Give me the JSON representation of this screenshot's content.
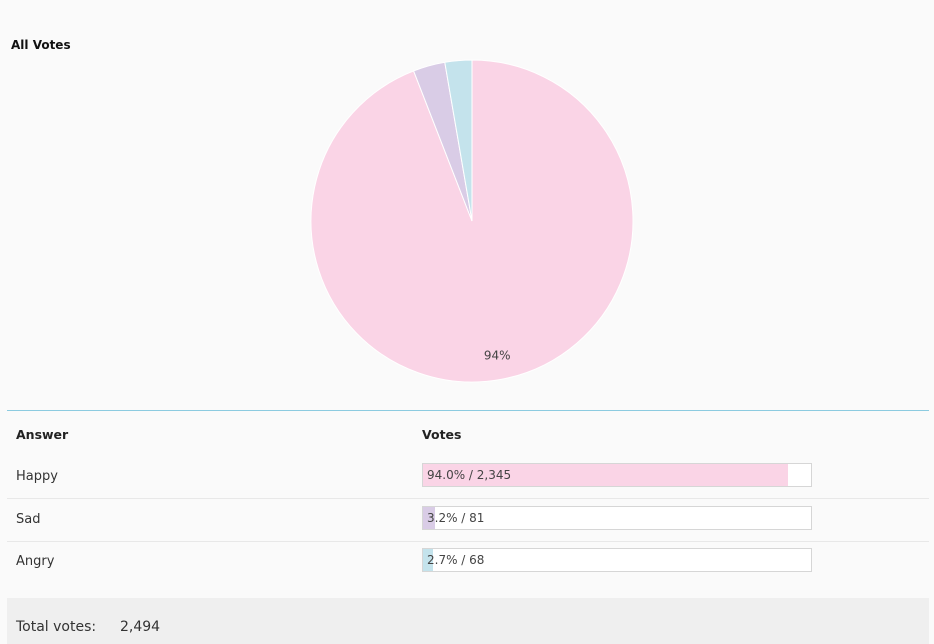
{
  "chart_data": {
    "type": "pie",
    "title": "All Votes",
    "categories": [
      "Happy",
      "Sad",
      "Angry"
    ],
    "values": [
      94.0,
      3.2,
      2.7
    ],
    "value_labels": [
      "94%",
      null,
      null
    ],
    "colors": [
      "#fad4e6",
      "#d9cce6",
      "#c4e3ec"
    ]
  },
  "table": {
    "headers": [
      "Answer",
      "Votes"
    ],
    "rows": [
      [
        "Happy",
        "94.0% / 2,345"
      ],
      [
        "Sad",
        "3.2% / 81"
      ],
      [
        "Angry",
        "2.7% / 68"
      ]
    ]
  },
  "footer": {
    "label": "Total votes:",
    "value": "2,494"
  }
}
